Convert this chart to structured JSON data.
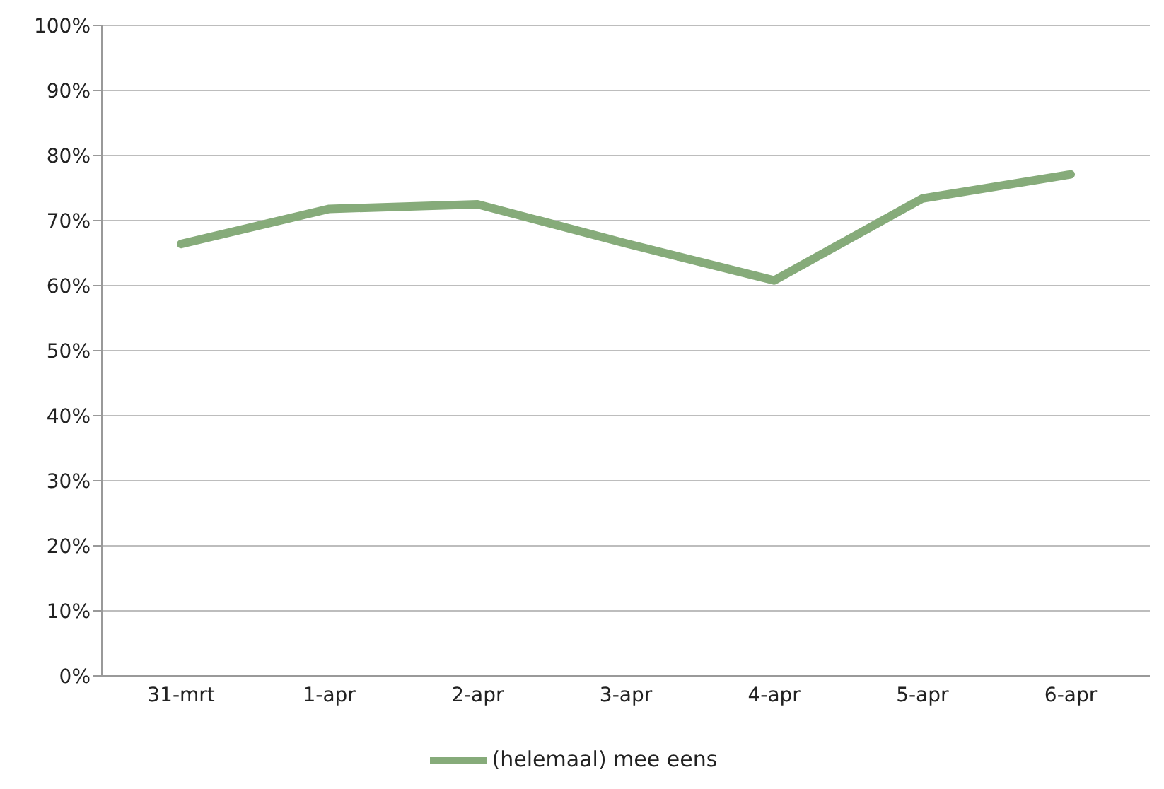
{
  "chart_data": {
    "type": "line",
    "categories": [
      "31-mrt",
      "1-apr",
      "2-apr",
      "3-apr",
      "4-apr",
      "5-apr",
      "6-apr"
    ],
    "series": [
      {
        "name": "(helemaal) mee eens",
        "color": "#86ab7a",
        "values": [
          0.664,
          0.718,
          0.725,
          0.665,
          0.608,
          0.734,
          0.771
        ]
      }
    ],
    "ylim": [
      0,
      1
    ],
    "yticks": [
      {
        "value": 0,
        "label": "0%"
      },
      {
        "value": 0.1,
        "label": "10%"
      },
      {
        "value": 0.2,
        "label": "20%"
      },
      {
        "value": 0.3,
        "label": "30%"
      },
      {
        "value": 0.4,
        "label": "40%"
      },
      {
        "value": 0.5,
        "label": "50%"
      },
      {
        "value": 0.6,
        "label": "60%"
      },
      {
        "value": 0.7,
        "label": "70%"
      },
      {
        "value": 0.8,
        "label": "80%"
      },
      {
        "value": 0.9,
        "label": "90%"
      },
      {
        "value": 1,
        "label": "100%"
      }
    ],
    "grid": "y",
    "legend": "bottom",
    "marker": "none",
    "line_style": "solid"
  }
}
